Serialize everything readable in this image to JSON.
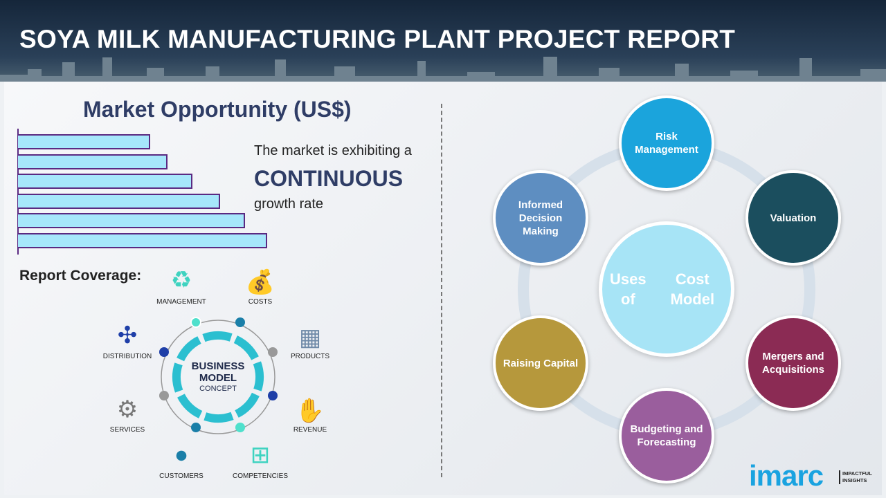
{
  "header": {
    "title": "SOYA MILK MANUFACTURING PLANT PROJECT REPORT"
  },
  "market": {
    "title": "Market Opportunity (US$)",
    "line1": "The market is exhibiting a",
    "line2": "CONTINUOUS",
    "line3": "growth rate",
    "bar_levels_percent": [
      53,
      60,
      70,
      81,
      91,
      100
    ],
    "bar_color": "#a6e7fb",
    "bar_border": "#5a2a82"
  },
  "coverage": {
    "title": "Report Coverage:",
    "center_line1": "BUSINESS",
    "center_line2": "MODEL",
    "center_line3": "CONCEPT",
    "items": [
      {
        "label": "MANAGEMENT",
        "icon": "lightbulb-cycle-icon"
      },
      {
        "label": "COSTS",
        "icon": "money-bag-icon"
      },
      {
        "label": "DISTRIBUTION",
        "icon": "network-icon"
      },
      {
        "label": "PRODUCTS",
        "icon": "box-icon"
      },
      {
        "label": "SERVICES",
        "icon": "gears-icon"
      },
      {
        "label": "REVENUE",
        "icon": "hand-coins-icon"
      },
      {
        "label": "CUSTOMERS",
        "icon": "person-icon"
      },
      {
        "label": "COMPETENCIES",
        "icon": "hierarchy-icon"
      }
    ]
  },
  "cost_model": {
    "center": "Uses of Cost Model",
    "center_line1": "Uses of",
    "center_line2": "Cost Model",
    "items": [
      {
        "label": "Risk Management",
        "color": "#1ba4dc"
      },
      {
        "label": "Valuation",
        "color": "#1b4e5e"
      },
      {
        "label": "Mergers and Acquisitions",
        "color": "#8b2b54"
      },
      {
        "label": "Budgeting and Forecasting",
        "color": "#9a5e9d"
      },
      {
        "label": "Raising Capital",
        "color": "#b6983c"
      },
      {
        "label": "Informed Decision Making",
        "color": "#5e8ec1"
      }
    ]
  },
  "logo": {
    "name": "imarc",
    "tag1": "IMPACTFUL",
    "tag2": "INSIGHTS"
  }
}
